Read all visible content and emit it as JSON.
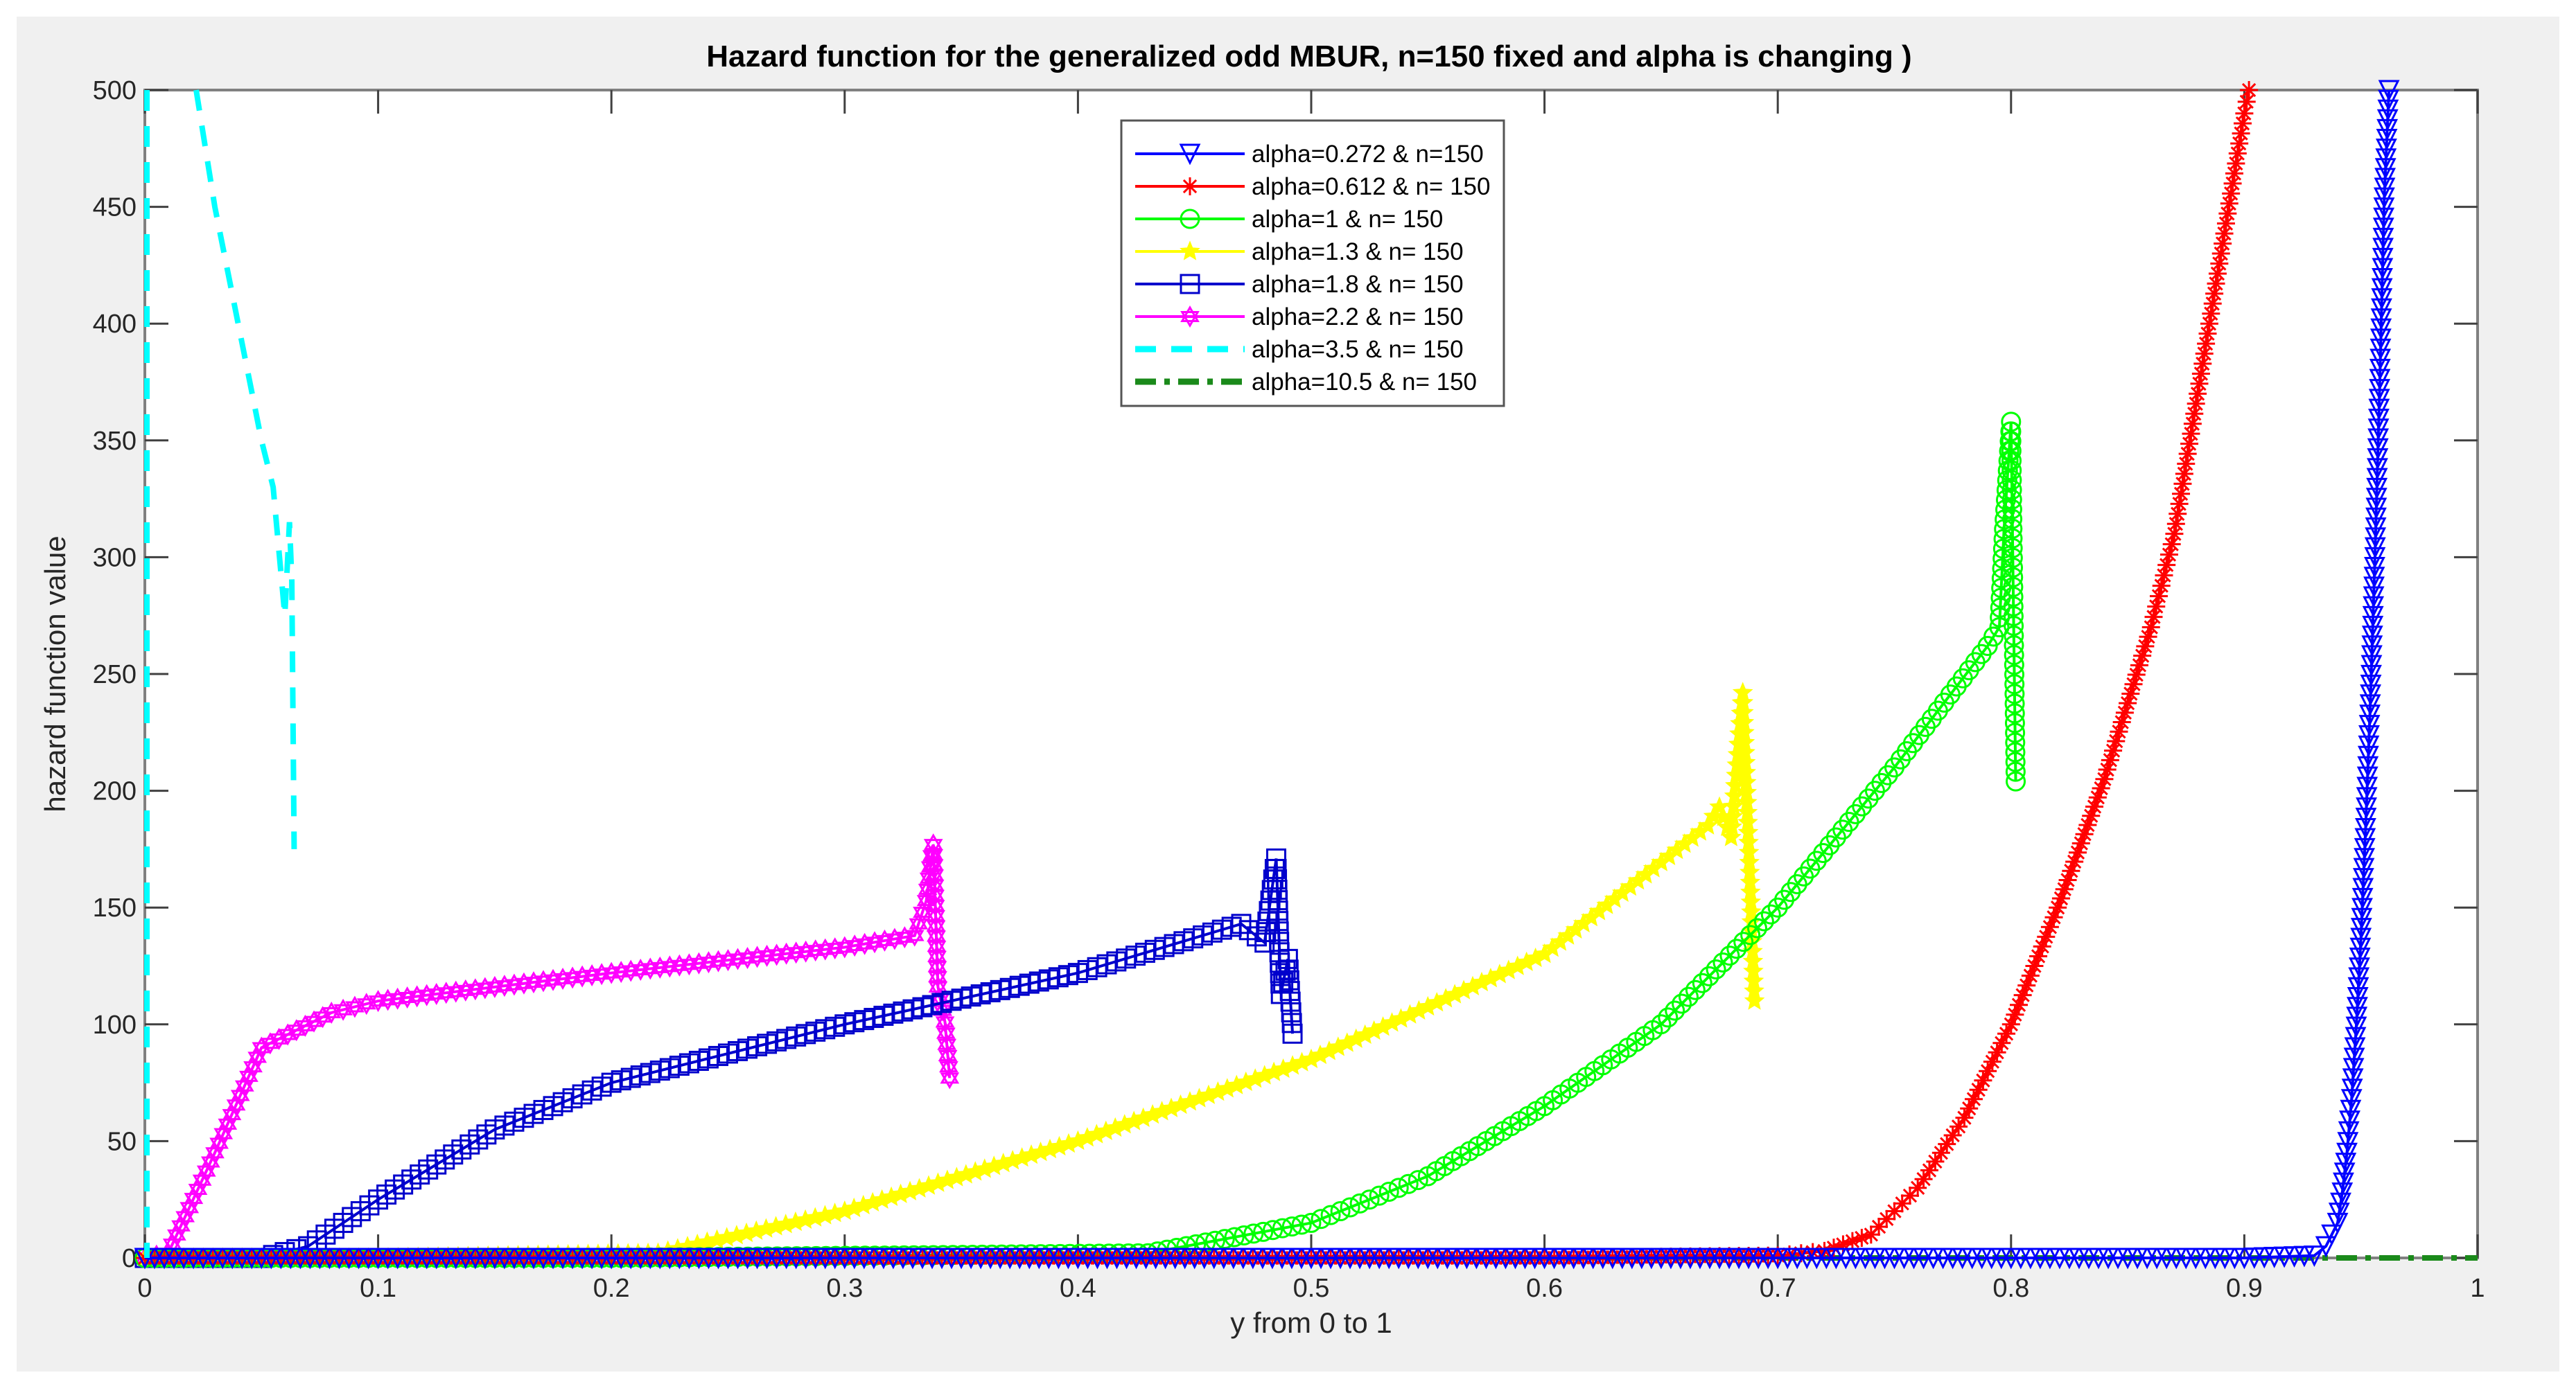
{
  "chart_data": {
    "type": "line",
    "title": "Hazard function for the generalized odd MBUR, n=150 fixed and alpha is changing )",
    "xlabel": "y from 0 to 1",
    "ylabel": "hazard function value",
    "xlim": [
      0,
      1
    ],
    "ylim": [
      0,
      500
    ],
    "x_ticks": [
      "0",
      "0.1",
      "0.2",
      "0.3",
      "0.4",
      "0.5",
      "0.6",
      "0.7",
      "0.8",
      "0.9",
      "1"
    ],
    "y_ticks": [
      "0",
      "50",
      "100",
      "150",
      "200",
      "250",
      "300",
      "350",
      "400",
      "450",
      "500"
    ],
    "grid": false,
    "legend_position": "top-center",
    "series": [
      {
        "name": "alpha=0.272 & n=150",
        "color": "#0000ff",
        "line_style": "solid",
        "marker": "triangle-down",
        "x": [
          0.0,
          0.2,
          0.4,
          0.6,
          0.8,
          0.9,
          0.93,
          0.935,
          0.94,
          0.942,
          0.944,
          0.946,
          0.948,
          0.95,
          0.952,
          0.954,
          0.956,
          0.958,
          0.96,
          0.962
        ],
        "y": [
          0,
          0,
          0,
          0,
          0,
          0,
          1,
          5,
          15,
          28,
          45,
          68,
          99,
          137,
          184,
          237,
          300,
          372,
          454,
          500
        ]
      },
      {
        "name": "alpha=0.612 & n= 150",
        "color": "#ff0000",
        "line_style": "solid",
        "marker": "asterisk",
        "x": [
          0.0,
          0.2,
          0.4,
          0.6,
          0.7,
          0.72,
          0.74,
          0.76,
          0.78,
          0.8,
          0.82,
          0.84,
          0.86,
          0.87,
          0.88,
          0.89,
          0.9,
          0.902
        ],
        "y": [
          0,
          0,
          0,
          0,
          1,
          3,
          10,
          30,
          60,
          100,
          150,
          205,
          270,
          310,
          370,
          430,
          490,
          500
        ]
      },
      {
        "name": "alpha=1 & n= 150",
        "color": "#00ff00",
        "line_style": "solid",
        "marker": "circle",
        "x": [
          0.0,
          0.2,
          0.43,
          0.5,
          0.55,
          0.6,
          0.65,
          0.7,
          0.75,
          0.79,
          0.795,
          0.797,
          0.8,
          0.802
        ],
        "y": [
          0,
          0,
          2,
          15,
          35,
          65,
          100,
          150,
          210,
          262,
          270,
          312,
          358,
          204
        ]
      },
      {
        "name": "alpha=1.3 & n= 150",
        "color": "#ffff00",
        "line_style": "solid",
        "marker": "star",
        "x": [
          0.0,
          0.1,
          0.22,
          0.3,
          0.4,
          0.5,
          0.6,
          0.67,
          0.675,
          0.68,
          0.685,
          0.688,
          0.69
        ],
        "y": [
          0,
          0,
          2,
          20,
          50,
          85,
          130,
          185,
          193,
          180,
          242,
          165,
          110
        ]
      },
      {
        "name": "alpha=1.8 & n= 150",
        "color": "#0000cc",
        "line_style": "solid",
        "marker": "square",
        "x": [
          0.0,
          0.05,
          0.07,
          0.1,
          0.15,
          0.2,
          0.3,
          0.4,
          0.47,
          0.48,
          0.485,
          0.487,
          0.49,
          0.492
        ],
        "y": [
          0,
          0,
          5,
          25,
          55,
          75,
          100,
          122,
          143,
          135,
          171,
          113,
          128,
          96
        ]
      },
      {
        "name": "alpha=2.2 & n= 150",
        "color": "#ff00ff",
        "line_style": "solid",
        "marker": "hexagram",
        "x": [
          0.0,
          0.01,
          0.03,
          0.05,
          0.08,
          0.1,
          0.2,
          0.3,
          0.33,
          0.335,
          0.338,
          0.34,
          0.343,
          0.345
        ],
        "y": [
          0,
          2,
          45,
          90,
          105,
          110,
          122,
          133,
          138,
          153,
          177,
          116,
          101,
          77
        ]
      },
      {
        "name": "alpha=3.5 & n= 150",
        "color": "#00ffff",
        "line_style": "dashed",
        "marker": "none",
        "x": [
          0.022,
          0.03,
          0.04,
          0.05,
          0.055,
          0.06,
          0.062,
          0.063,
          0.064
        ],
        "y": [
          500,
          450,
          400,
          350,
          330,
          275,
          315,
          290,
          175
        ]
      },
      {
        "name": "alpha=10.5 & n= 150",
        "color": "#1a8a1a",
        "line_style": "dash-dot",
        "marker": "none",
        "x": [
          0.0,
          0.25,
          0.5,
          0.75,
          1.0
        ],
        "y": [
          0,
          0,
          0,
          0,
          0
        ]
      }
    ]
  },
  "figure": {
    "title": "Hazard function for the generalized odd MBUR, n=150 fixed and alpha is changing )",
    "xlabel": "y from 0 to 1",
    "ylabel": "hazard function value",
    "x_ticks": [
      "0",
      "0.1",
      "0.2",
      "0.3",
      "0.4",
      "0.5",
      "0.6",
      "0.7",
      "0.8",
      "0.9",
      "1"
    ],
    "y_ticks": [
      "0",
      "50",
      "100",
      "150",
      "200",
      "250",
      "300",
      "350",
      "400",
      "450",
      "500"
    ],
    "legend": [
      "alpha=0.272 & n=150",
      "alpha=0.612 & n= 150",
      "alpha=1 & n= 150",
      "alpha=1.3 & n= 150",
      "alpha=1.8 & n= 150",
      "alpha=2.2 & n= 150",
      "alpha=3.5 & n= 150",
      "alpha=10.5 & n= 150"
    ]
  }
}
